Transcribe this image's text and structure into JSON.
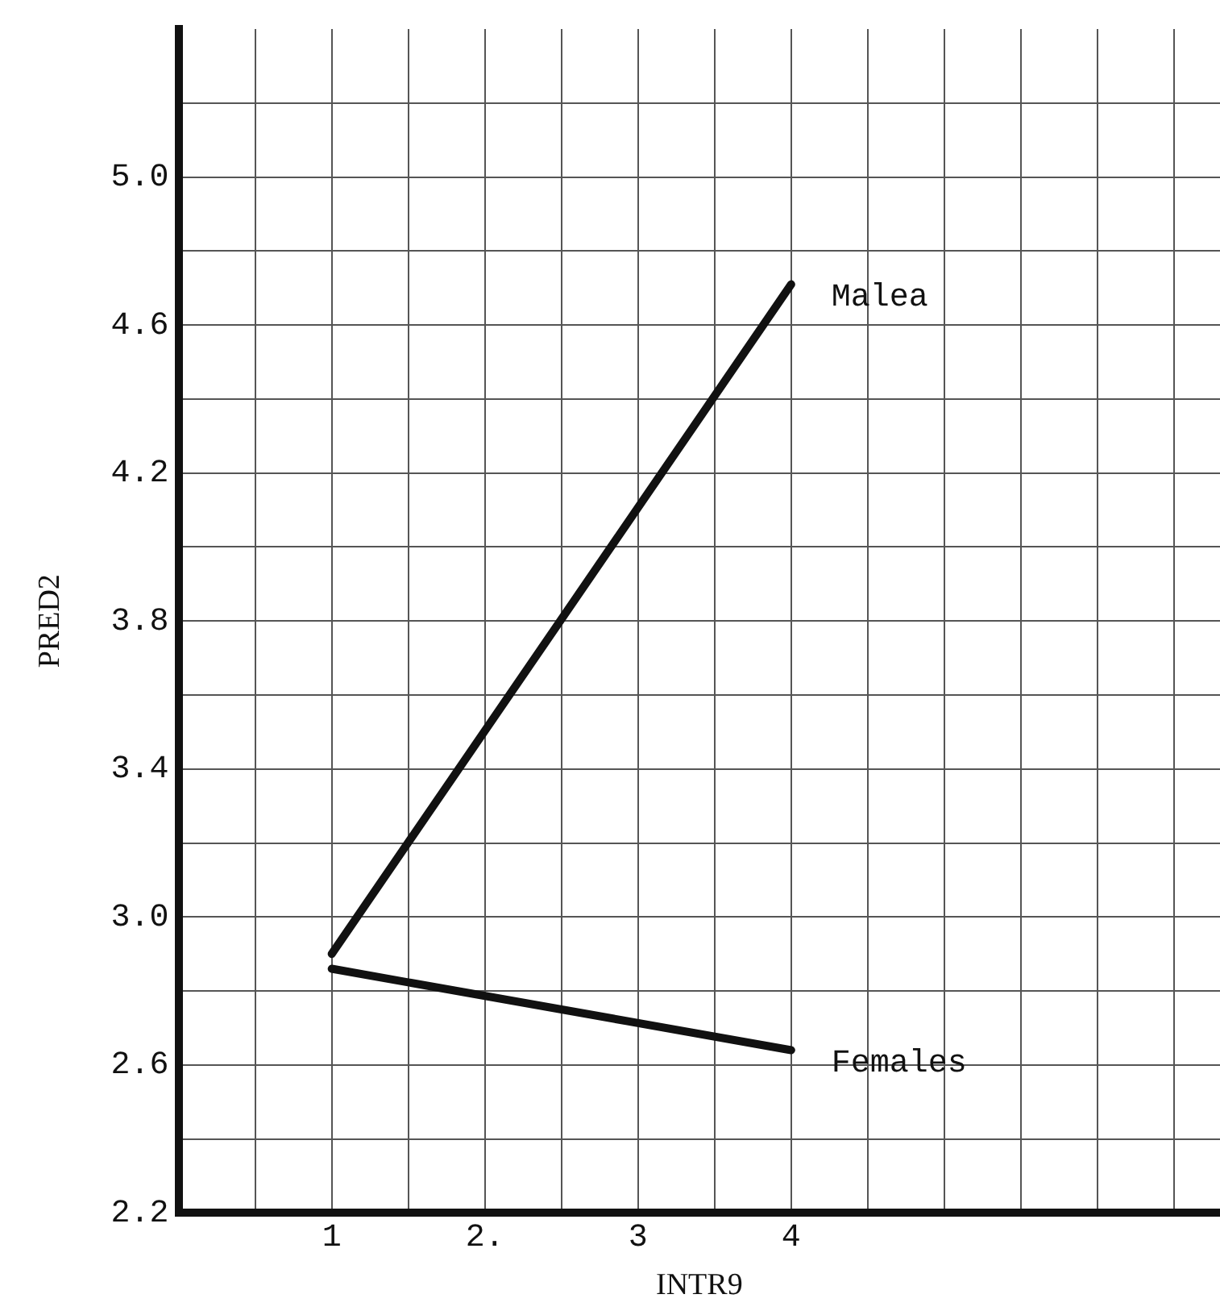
{
  "chart_data": {
    "type": "line",
    "xlabel": "INTR9",
    "ylabel": "PRED2",
    "x": [
      1,
      4
    ],
    "series": [
      {
        "name": "Malea",
        "color": "#111111",
        "values": [
          2.9,
          4.71
        ]
      },
      {
        "name": "Females",
        "color": "#111111",
        "values": [
          2.86,
          2.64
        ]
      }
    ],
    "xlim": [
      0,
      6.8
    ],
    "xticks": [
      {
        "value": 0.5,
        "label": null
      },
      1,
      {
        "value": 1.5,
        "label": null
      },
      {
        "value": 2,
        "label": "2."
      },
      {
        "value": 2.5,
        "label": null
      },
      3,
      {
        "value": 3.5,
        "label": null
      },
      4,
      {
        "value": 4.5,
        "label": null
      },
      {
        "value": 5,
        "label": null
      },
      {
        "value": 5.5,
        "label": null
      },
      {
        "value": 6,
        "label": null
      },
      {
        "value": 6.5,
        "label": null
      }
    ],
    "ylim": [
      2.2,
      5.4
    ],
    "yticks": [
      {
        "value": 2.2,
        "label": "2.2"
      },
      {
        "value": 2.4,
        "label": null
      },
      {
        "value": 2.6,
        "label": "2.6"
      },
      {
        "value": 2.8,
        "label": null
      },
      {
        "value": 3.0,
        "label": "3.0"
      },
      {
        "value": 3.2,
        "label": null
      },
      {
        "value": 3.4,
        "label": "3.4"
      },
      {
        "value": 3.6,
        "label": null
      },
      {
        "value": 3.8,
        "label": "3.8"
      },
      {
        "value": 4.0,
        "label": null
      },
      {
        "value": 4.2,
        "label": "4.2"
      },
      {
        "value": 4.4,
        "label": null
      },
      {
        "value": 4.6,
        "label": "4.6"
      },
      {
        "value": 4.8,
        "label": null
      },
      {
        "value": 5.0,
        "label": "5.0"
      },
      {
        "value": 5.2,
        "label": null
      }
    ],
    "grid": true,
    "legend": false,
    "marker": "none",
    "line_style": "solid"
  }
}
